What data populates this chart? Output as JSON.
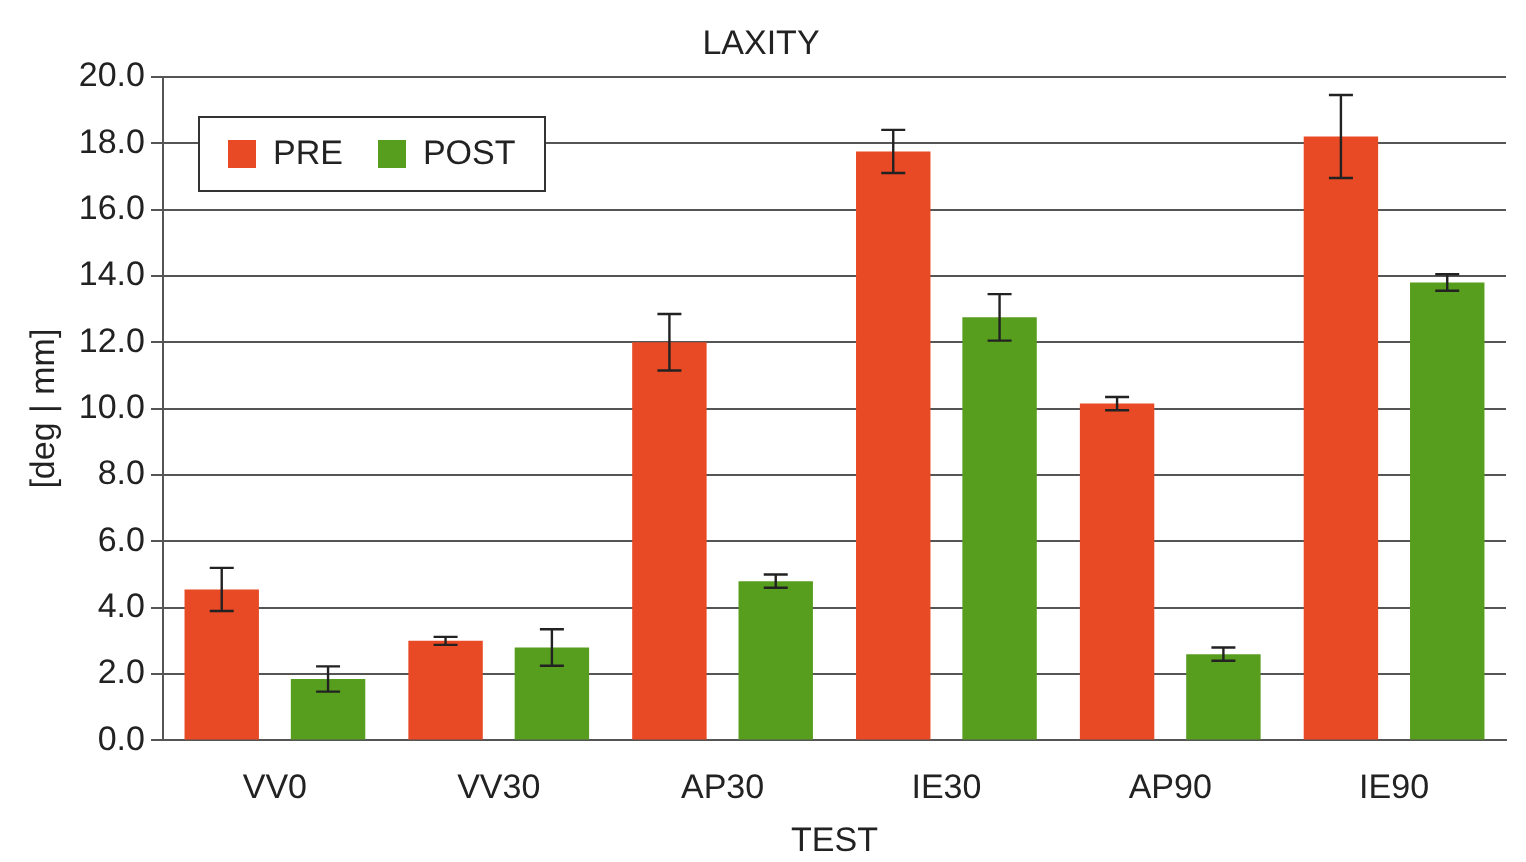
{
  "chart_data": {
    "type": "bar",
    "title": "LAXITY",
    "xlabel": "TEST",
    "ylabel": "[deg | mm]",
    "categories": [
      "VV0",
      "VV30",
      "AP30",
      "IE30",
      "AP90",
      "IE90"
    ],
    "series": [
      {
        "name": "PRE",
        "color": "#e84a25",
        "values": [
          4.55,
          3.0,
          12.0,
          17.75,
          10.15,
          18.2
        ],
        "errors": [
          0.65,
          0.12,
          0.85,
          0.65,
          0.2,
          1.25
        ]
      },
      {
        "name": "POST",
        "color": "#589e1e",
        "values": [
          1.85,
          2.8,
          4.8,
          12.75,
          2.6,
          13.8
        ],
        "errors": [
          0.38,
          0.55,
          0.2,
          0.7,
          0.2,
          0.25
        ]
      }
    ],
    "ylim": [
      0,
      20
    ],
    "yticks": [
      {
        "value": 0,
        "label": "0.0"
      },
      {
        "value": 2,
        "label": "2.0"
      },
      {
        "value": 4,
        "label": "4.0"
      },
      {
        "value": 6,
        "label": "6.0"
      },
      {
        "value": 8,
        "label": "8.0"
      },
      {
        "value": 10,
        "label": "10.0"
      },
      {
        "value": 12,
        "label": "12.0"
      },
      {
        "value": 14,
        "label": "14.0"
      },
      {
        "value": 16,
        "label": "16.0"
      },
      {
        "value": 18,
        "label": "18.0"
      },
      {
        "value": 20,
        "label": "20.0"
      }
    ],
    "grid": "y",
    "legend": "top left"
  }
}
